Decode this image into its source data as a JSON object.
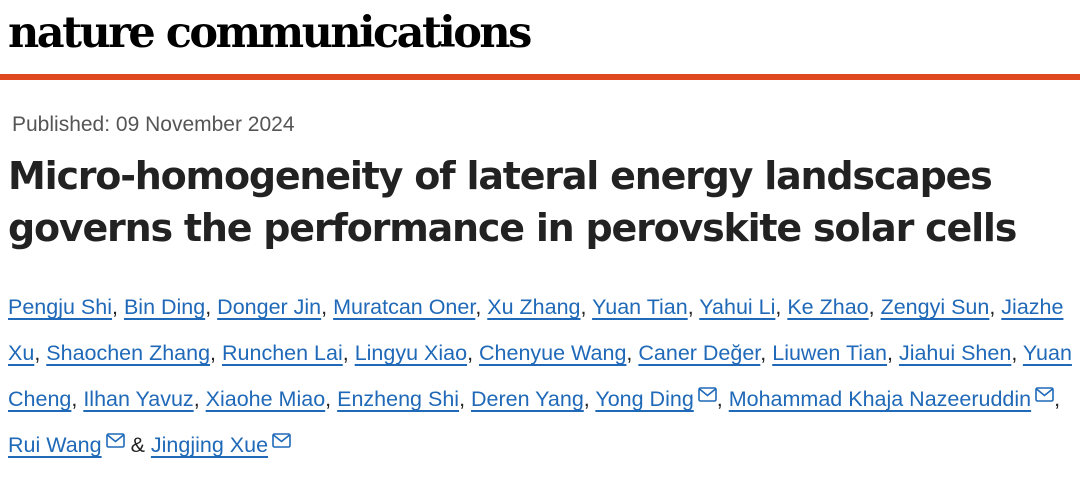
{
  "header": {
    "journal": "nature communications",
    "accent_color": "#e0491f"
  },
  "article": {
    "published": "Published: 09 November 2024",
    "title": "Micro-homogeneity of lateral energy landscapes governs the performance in perovskite solar cells"
  },
  "colors": {
    "link": "#1f69b8",
    "text": "#222222",
    "muted": "#555555"
  },
  "authors": [
    {
      "name": "Pengju Shi",
      "email_icon": false,
      "sep": ", "
    },
    {
      "name": "Bin Ding",
      "email_icon": false,
      "sep": ", "
    },
    {
      "name": "Donger Jin",
      "email_icon": false,
      "sep": ", "
    },
    {
      "name": "Muratcan Oner",
      "email_icon": false,
      "sep": ", "
    },
    {
      "name": "Xu Zhang",
      "email_icon": false,
      "sep": ", "
    },
    {
      "name": "Yuan Tian",
      "email_icon": false,
      "sep": ", "
    },
    {
      "name": "Yahui Li",
      "email_icon": false,
      "sep": ", "
    },
    {
      "name": "Ke Zhao",
      "email_icon": false,
      "sep": ", "
    },
    {
      "name": "Zengyi Sun",
      "email_icon": false,
      "sep": ", "
    },
    {
      "name": "Jiazhe Xu",
      "email_icon": false,
      "sep": ", "
    },
    {
      "name": "Shaochen Zhang",
      "email_icon": false,
      "sep": ", "
    },
    {
      "name": "Runchen Lai",
      "email_icon": false,
      "sep": ", "
    },
    {
      "name": "Lingyu Xiao",
      "email_icon": false,
      "sep": ", "
    },
    {
      "name": "Chenyue Wang",
      "email_icon": false,
      "sep": ", "
    },
    {
      "name": "Caner Değer",
      "email_icon": false,
      "sep": ", "
    },
    {
      "name": "Liuwen Tian",
      "email_icon": false,
      "sep": ", "
    },
    {
      "name": "Jiahui Shen",
      "email_icon": false,
      "sep": ", "
    },
    {
      "name": "Yuan Cheng",
      "email_icon": false,
      "sep": ", "
    },
    {
      "name": "Ilhan Yavuz",
      "email_icon": false,
      "sep": ", "
    },
    {
      "name": "Xiaohe Miao",
      "email_icon": false,
      "sep": ", "
    },
    {
      "name": "Enzheng Shi",
      "email_icon": false,
      "sep": ", "
    },
    {
      "name": "Deren Yang",
      "email_icon": false,
      "sep": ", "
    },
    {
      "name": "Yong Ding",
      "email_icon": true,
      "sep": ", "
    },
    {
      "name": "Mohammad Khaja Nazeeruddin",
      "email_icon": true,
      "sep": ", "
    },
    {
      "name": "Rui Wang",
      "email_icon": true,
      "sep": " & "
    },
    {
      "name": "Jingjing Xue",
      "email_icon": true,
      "sep": ""
    }
  ]
}
